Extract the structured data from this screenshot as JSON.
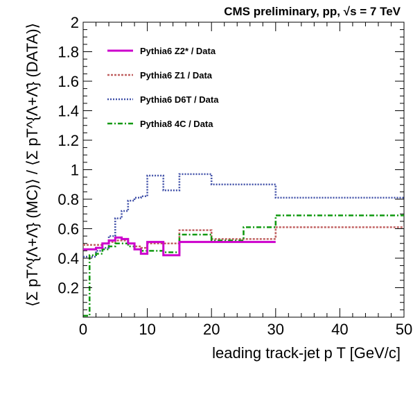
{
  "chart_data": {
    "type": "line",
    "title": "CMS preliminary, pp, √s = 7 TeV",
    "xlabel": "leading track-jet p T [GeV/c]",
    "ylabel": "⟨Σ pT^{Λ+Λ̄} (MC)⟩ / ⟨Σ pT^{Λ+Λ̄} (DATA)⟩",
    "xlim": [
      0,
      50
    ],
    "ylim": [
      0,
      2
    ],
    "xticks": [
      "0",
      "10",
      "20",
      "30",
      "40",
      "50"
    ],
    "yticks": [
      "0.2",
      "0.4",
      "0.6",
      "0.8",
      "1",
      "1.2",
      "1.4",
      "1.6",
      "1.8",
      "2"
    ],
    "legend_position": "top-left",
    "series": [
      {
        "name": "Pythia6 Z2* / Data",
        "color": "#cc00cc",
        "dash": "solid",
        "edges": [
          0,
          1,
          2,
          3,
          4,
          5,
          6,
          7,
          8,
          9,
          10,
          12.5,
          15,
          20,
          25,
          30
        ],
        "values": [
          0.46,
          0.46,
          0.47,
          0.5,
          0.52,
          0.54,
          0.53,
          0.5,
          0.46,
          0.43,
          0.51,
          0.42,
          0.51,
          0.51,
          0.51
        ]
      },
      {
        "name": "Pythia6 Z1 / Data",
        "color": "#c06060",
        "dash": "3,2",
        "edges": [
          0,
          1,
          2,
          3,
          4,
          5,
          6,
          7,
          8,
          9,
          10,
          12.5,
          15,
          20,
          25,
          30,
          50
        ],
        "values": [
          0.49,
          0.49,
          0.49,
          0.5,
          0.51,
          0.52,
          0.52,
          0.5,
          0.48,
          0.47,
          0.5,
          0.5,
          0.59,
          0.53,
          0.53,
          0.61
        ]
      },
      {
        "name": "Pythia6 D6T / Data",
        "color": "#4050a8",
        "dash": "2,2",
        "edges": [
          0,
          1,
          2,
          3,
          4,
          5,
          6,
          7,
          8,
          9,
          10,
          12.5,
          15,
          20,
          25,
          30,
          50
        ],
        "values": [
          0.41,
          0.41,
          0.45,
          0.47,
          0.55,
          0.67,
          0.72,
          0.79,
          0.81,
          0.82,
          0.96,
          0.86,
          0.97,
          0.9,
          0.9,
          0.81
        ]
      },
      {
        "name": "Pythia8 4C / Data",
        "color": "#119911",
        "dash": "7,3,2,3",
        "edges": [
          0,
          1,
          2,
          3,
          4,
          5,
          6,
          7,
          8,
          9,
          10,
          12.5,
          15,
          20,
          25,
          30,
          50
        ],
        "values": [
          0.01,
          0.42,
          0.43,
          0.46,
          0.48,
          0.5,
          0.5,
          0.48,
          0.46,
          0.45,
          0.45,
          0.44,
          0.56,
          0.52,
          0.61,
          0.69
        ]
      }
    ]
  }
}
